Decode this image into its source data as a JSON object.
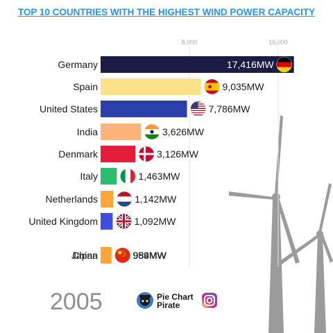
{
  "title": "TOP 10 COUNTRIES WITH THE HIGHEST WIND POWER CAPACITY",
  "year": "2005",
  "brand": {
    "name": "Pie Chart Pirate",
    "social_icon": "instagram-icon",
    "logo_icon": "pirate-logo-icon"
  },
  "chart_data": {
    "type": "bar",
    "orientation": "horizontal",
    "title": "TOP 10 COUNTRIES WITH THE HIGHEST WIND POWER CAPACITY",
    "unit": "MW",
    "xlim": [
      0,
      18000
    ],
    "ticks": [
      8000,
      16000
    ],
    "tick_labels": [
      "8,000",
      "16,000"
    ],
    "grid": true,
    "categories": [
      "Germany",
      "Spain",
      "United States",
      "India",
      "Denmark",
      "Italy",
      "Netherlands",
      "United Kingdom",
      "China",
      "Japan"
    ],
    "values": [
      17416,
      9035,
      7786,
      3626,
      3126,
      1463,
      1142,
      1092,
      984,
      959
    ],
    "value_labels": [
      "17,416MW",
      "9,035MW",
      "7,786MW",
      "3,626MW",
      "3,126MW",
      "1,463MW",
      "1,142MW",
      "1,092MW",
      "984MW",
      "959MW"
    ],
    "colors": [
      "#1b1b45",
      "#fde18a",
      "#2a3fa8",
      "#ffb27a",
      "#e41e3a",
      "#2ebd6e",
      "#ffa53a",
      "#3f4ee0",
      "#ffa53a",
      "#ffa53a"
    ],
    "flags": [
      "germany-flag-icon",
      "spain-flag-icon",
      "usa-flag-icon",
      "india-flag-icon",
      "denmark-flag-icon",
      "italy-flag-icon",
      "netherlands-flag-icon",
      "uk-flag-icon",
      "china-flag-icon",
      "japan-flag-icon"
    ]
  }
}
